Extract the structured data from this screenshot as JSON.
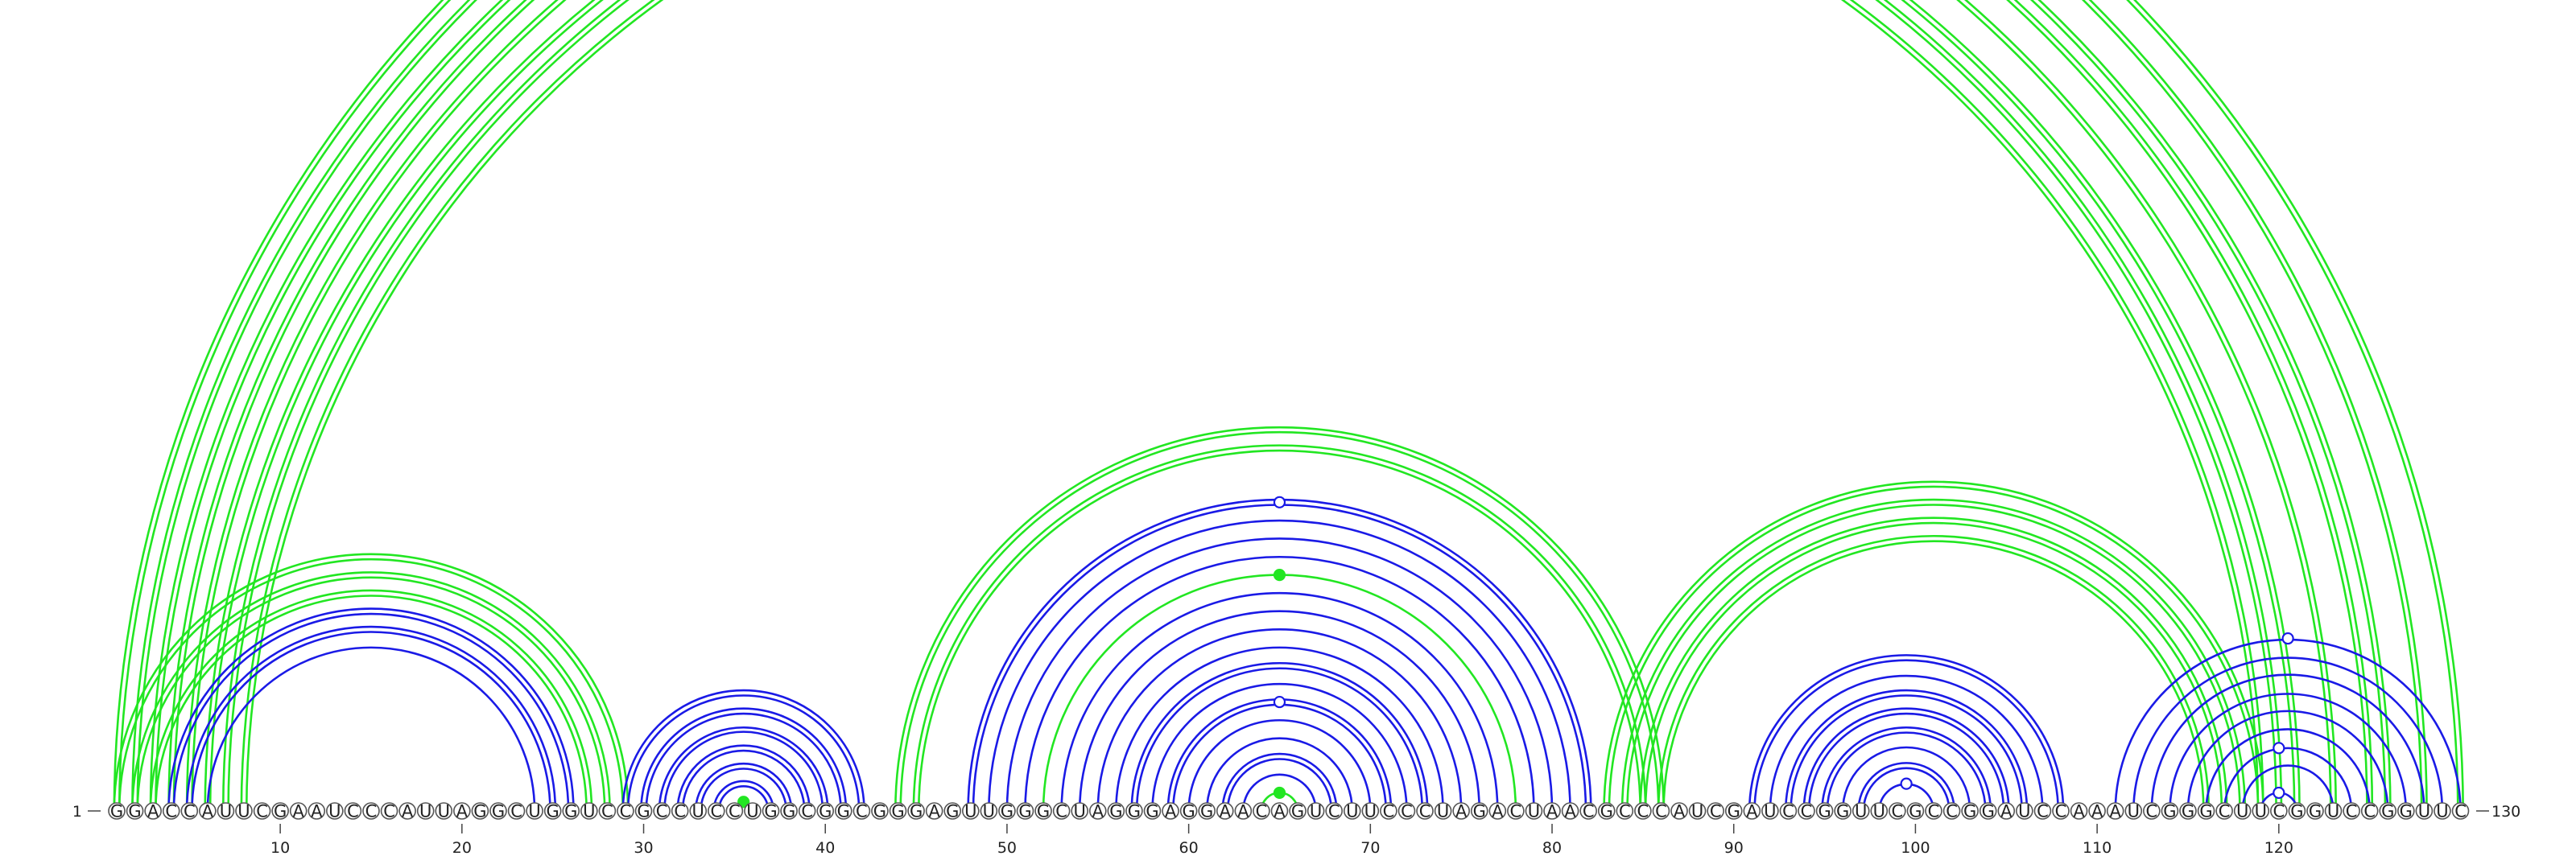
{
  "chart_data": {
    "type": "arc-diagram",
    "sequence": "GGACCAUUCGAAUCCCAUUAGGCUGGUCCGCCUCCUGGCGGCGGGAGUUGGGCUAGGGAGGAACAGUCUUCCCUAGACUAACGCCCAUCGAUCCGGUUCGCCGGAUCCAAAUCGGGCUUCGGUCCGGUUC",
    "start_label": "1",
    "end_label": "130",
    "ticks": [
      10,
      20,
      30,
      40,
      50,
      60,
      70,
      80,
      90,
      100,
      110,
      120
    ],
    "colors": {
      "blue": "#1a1ae6",
      "green": "#22e622"
    },
    "arcs": [
      {
        "i": 1,
        "j": 130,
        "color": "green",
        "double": true
      },
      {
        "i": 2,
        "j": 128,
        "color": "green",
        "double": true
      },
      {
        "i": 3,
        "j": 126,
        "color": "green",
        "double": true
      },
      {
        "i": 4,
        "j": 125,
        "color": "green",
        "double": true
      },
      {
        "i": 5,
        "j": 123,
        "color": "green",
        "double": true
      },
      {
        "i": 6,
        "j": 121,
        "color": "green",
        "double": true
      },
      {
        "i": 7,
        "j": 120,
        "color": "green",
        "double": true
      },
      {
        "i": 8,
        "j": 119,
        "color": "green",
        "double": true
      },
      {
        "i": 1,
        "j": 29,
        "color": "green",
        "double": true
      },
      {
        "i": 2,
        "j": 28,
        "color": "green",
        "double": true
      },
      {
        "i": 3,
        "j": 27,
        "color": "green",
        "double": true
      },
      {
        "i": 4,
        "j": 26,
        "color": "blue",
        "double": true
      },
      {
        "i": 5,
        "j": 25,
        "color": "blue",
        "double": true
      },
      {
        "i": 6,
        "j": 24,
        "color": "blue",
        "double": false
      },
      {
        "i": 29,
        "j": 42,
        "color": "blue",
        "double": true
      },
      {
        "i": 30,
        "j": 41,
        "color": "blue",
        "double": true
      },
      {
        "i": 31,
        "j": 40,
        "color": "blue",
        "double": true
      },
      {
        "i": 32,
        "j": 39,
        "color": "blue",
        "double": true
      },
      {
        "i": 33,
        "j": 38,
        "color": "blue",
        "double": true
      },
      {
        "i": 34,
        "j": 37,
        "color": "blue",
        "double": true
      },
      {
        "i": 35,
        "j": 36,
        "color": "green",
        "double": false
      },
      {
        "i": 44,
        "j": 86,
        "color": "green",
        "double": true
      },
      {
        "i": 45,
        "j": 85,
        "color": "green",
        "double": true
      },
      {
        "i": 48,
        "j": 82,
        "color": "blue",
        "double": true
      },
      {
        "i": 49,
        "j": 81,
        "color": "blue",
        "double": false
      },
      {
        "i": 50,
        "j": 80,
        "color": "blue",
        "double": false
      },
      {
        "i": 51,
        "j": 79,
        "color": "blue",
        "double": false
      },
      {
        "i": 52,
        "j": 78,
        "color": "green",
        "double": false
      },
      {
        "i": 53,
        "j": 77,
        "color": "blue",
        "double": false
      },
      {
        "i": 54,
        "j": 76,
        "color": "blue",
        "double": false
      },
      {
        "i": 55,
        "j": 75,
        "color": "blue",
        "double": false
      },
      {
        "i": 56,
        "j": 74,
        "color": "blue",
        "double": false
      },
      {
        "i": 57,
        "j": 73,
        "color": "blue",
        "double": true
      },
      {
        "i": 58,
        "j": 72,
        "color": "blue",
        "double": false
      },
      {
        "i": 59,
        "j": 71,
        "color": "blue",
        "double": true
      },
      {
        "i": 60,
        "j": 70,
        "color": "blue",
        "double": false
      },
      {
        "i": 61,
        "j": 69,
        "color": "blue",
        "double": false
      },
      {
        "i": 62,
        "j": 68,
        "color": "blue",
        "double": true
      },
      {
        "i": 63,
        "j": 67,
        "color": "blue",
        "double": false
      },
      {
        "i": 64,
        "j": 66,
        "color": "green",
        "double": false
      },
      {
        "i": 83,
        "j": 119,
        "color": "green",
        "double": true
      },
      {
        "i": 84,
        "j": 118,
        "color": "green",
        "double": true
      },
      {
        "i": 85,
        "j": 117,
        "color": "green",
        "double": true
      },
      {
        "i": 86,
        "j": 116,
        "color": "green",
        "double": true
      },
      {
        "i": 91,
        "j": 108,
        "color": "blue",
        "double": true
      },
      {
        "i": 92,
        "j": 107,
        "color": "blue",
        "double": false
      },
      {
        "i": 93,
        "j": 106,
        "color": "blue",
        "double": true
      },
      {
        "i": 94,
        "j": 105,
        "color": "blue",
        "double": true
      },
      {
        "i": 95,
        "j": 104,
        "color": "blue",
        "double": true
      },
      {
        "i": 96,
        "j": 103,
        "color": "blue",
        "double": false
      },
      {
        "i": 97,
        "j": 102,
        "color": "blue",
        "double": true
      },
      {
        "i": 98,
        "j": 101,
        "color": "blue",
        "double": false
      },
      {
        "i": 111,
        "j": 130,
        "color": "blue",
        "double": false
      },
      {
        "i": 112,
        "j": 129,
        "color": "blue",
        "double": false
      },
      {
        "i": 113,
        "j": 128,
        "color": "blue",
        "double": false
      },
      {
        "i": 114,
        "j": 127,
        "color": "blue",
        "double": false
      },
      {
        "i": 115,
        "j": 126,
        "color": "blue",
        "double": false
      },
      {
        "i": 116,
        "j": 125,
        "color": "blue",
        "double": false
      },
      {
        "i": 117,
        "j": 124,
        "color": "blue",
        "double": false
      },
      {
        "i": 118,
        "j": 123,
        "color": "blue",
        "double": false
      },
      {
        "i": 119,
        "j": 121,
        "color": "blue",
        "double": false
      }
    ],
    "markers": [
      {
        "pos": 65,
        "color": "green",
        "filled": false,
        "arc": "1-130"
      },
      {
        "pos": 35.5,
        "color": "green",
        "filled": true,
        "arc": "35-36"
      },
      {
        "pos": 65,
        "color": "blue",
        "filled": false,
        "arc": "48-82"
      },
      {
        "pos": 65,
        "color": "green",
        "filled": true,
        "arc": "52-78"
      },
      {
        "pos": 65,
        "color": "blue",
        "filled": false,
        "arc": "59-71"
      },
      {
        "pos": 65,
        "color": "green",
        "filled": true,
        "arc": "64-66"
      },
      {
        "pos": 99.5,
        "color": "blue",
        "filled": false,
        "arc": "98-101"
      },
      {
        "pos": 120.5,
        "color": "blue",
        "filled": false,
        "arc": "111-130"
      },
      {
        "pos": 120,
        "color": "blue",
        "filled": false,
        "arc": "117-124"
      },
      {
        "pos": 120,
        "color": "blue",
        "filled": false,
        "arc": "119-121"
      }
    ]
  }
}
